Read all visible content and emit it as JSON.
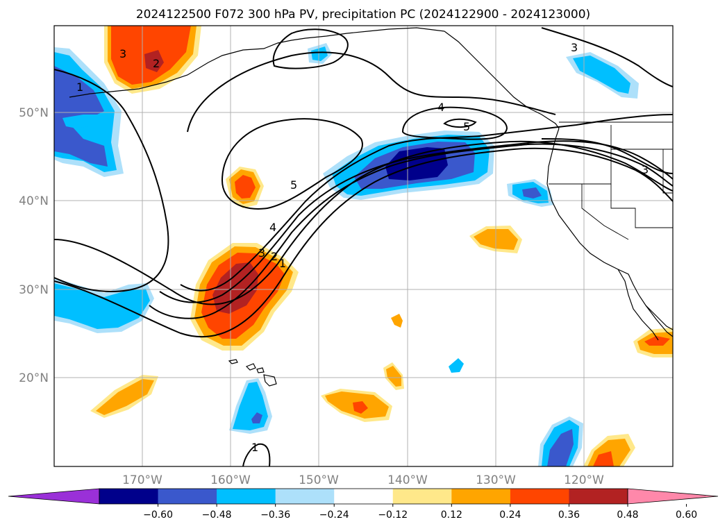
{
  "title": "2024122500 F072 300 hPa PV, precipitation PC (2024122900 - 2024123000)",
  "lat_labels": [
    "50°N",
    "40°N",
    "30°N",
    "20°N"
  ],
  "lon_labels": [
    "170°W",
    "160°W",
    "150°W",
    "140°W",
    "130°W",
    "120°W"
  ],
  "contour_labels": [
    "1",
    "3",
    "2",
    "5",
    "4",
    "5",
    "4",
    "3",
    "2",
    "1",
    "3",
    "3",
    "1"
  ],
  "colorbar": {
    "ticks": [
      "−0.60",
      "−0.48",
      "−0.36",
      "−0.24",
      "−0.12",
      "0.12",
      "0.24",
      "0.36",
      "0.48",
      "0.60"
    ],
    "colors": [
      "#9a30d8",
      "#00008b",
      "#3a58cc",
      "#00bfff",
      "#ade0fa",
      "#ffffff",
      "#ffe88a",
      "#ffa500",
      "#ff4500",
      "#b22222",
      "#ff88aa"
    ]
  },
  "colors": {
    "gridline": "#b0b0b0",
    "coastline": "#000000",
    "contour": "#000000"
  }
}
